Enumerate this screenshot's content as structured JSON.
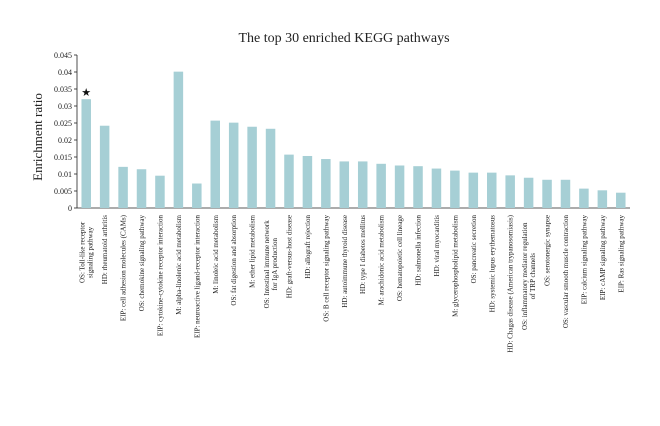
{
  "chart_data": {
    "type": "bar",
    "title": "The top 30 enriched KEGG pathways",
    "ylabel": "Enrichment ratio",
    "xlabel": "",
    "ylim": [
      0,
      0.045
    ],
    "yticks": [
      "0",
      "0.005",
      "0.01",
      "0.015",
      "0.02",
      "0.025",
      "0.03",
      "0.035",
      "0.04",
      "0.045"
    ],
    "bar_color": "#a6cfd5",
    "grid": false,
    "annotation": {
      "text": "★",
      "category_index": 0
    },
    "categories": [
      [
        "OS: Toll-like receptor",
        "signaling pathway"
      ],
      [
        "HD: rheumatoid arthritis"
      ],
      [
        "EIP: cell adhesion molecules (CAMs)"
      ],
      [
        "OS: chemokine signaling pathway"
      ],
      [
        "EIP: cytokine-cytokine receptor interaction"
      ],
      [
        "M: alpha-linolenic acid metabolism"
      ],
      [
        "EIP: neuroactive ligand-receptor interaction"
      ],
      [
        "M: linoleic acid metabolism"
      ],
      [
        "OS: fat digestion and absorption"
      ],
      [
        "M: ether lipid metabolism"
      ],
      [
        "OS: Intestinal immune network",
        "for IgA production"
      ],
      [
        "HD: graft-versus-host disease"
      ],
      [
        "HD: allograft rejection"
      ],
      [
        "OS: B cell receptor signaling pathway"
      ],
      [
        "HD: autoimmune thyroid disease"
      ],
      [
        "HD: type I diabetes mellitus"
      ],
      [
        "M: arachidonic acid metabolism"
      ],
      [
        "OS: hematopoietic cell lineage"
      ],
      [
        "HD: salmonella infection"
      ],
      [
        "HD: viral myocarditis"
      ],
      [
        "M: glycerophospholipid metabolism"
      ],
      [
        "OS: pancreatic secretion"
      ],
      [
        "HD: systemic lupus erythematosus"
      ],
      [
        "HD: Chagas disease (American trypanosomiasis)"
      ],
      [
        "OS: inflammatory mediator regulation",
        "of TRP channels"
      ],
      [
        "OS: serotonergic synapse"
      ],
      [
        "OS: vascular smooth muscle contraction"
      ],
      [
        "EIP: calcium signaling pathway"
      ],
      [
        "EIP: cAMP signaling pathway"
      ],
      [
        "EIP: Ras signaling pathway"
      ]
    ],
    "values": [
      0.032,
      0.0242,
      0.0121,
      0.0114,
      0.0095,
      0.0401,
      0.0072,
      0.0257,
      0.0251,
      0.0239,
      0.0233,
      0.0157,
      0.0153,
      0.0144,
      0.0137,
      0.0137,
      0.013,
      0.0125,
      0.0123,
      0.0116,
      0.011,
      0.0104,
      0.0104,
      0.0096,
      0.0089,
      0.0083,
      0.0083,
      0.0057,
      0.0052,
      0.0045
    ]
  }
}
